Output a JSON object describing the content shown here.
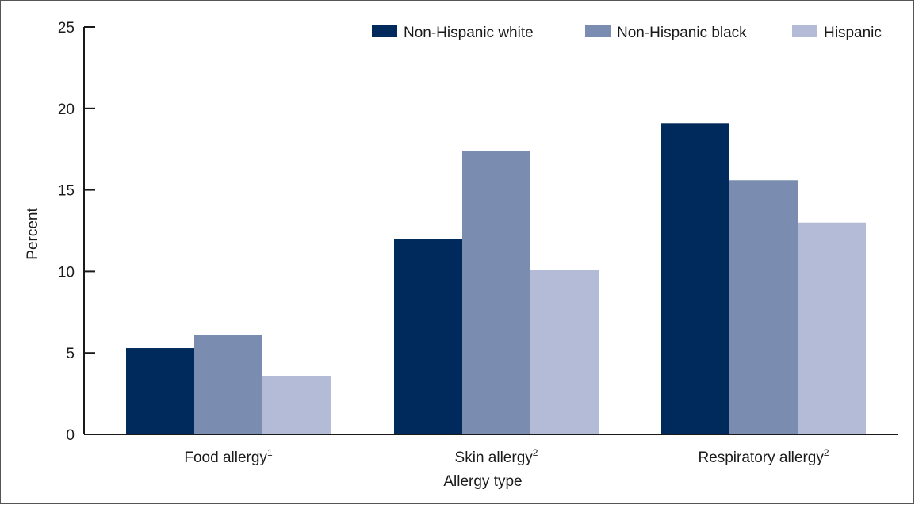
{
  "chart_data": {
    "type": "bar",
    "xlabel": "Allergy type",
    "ylabel": "Percent",
    "ylim": [
      0,
      25
    ],
    "yticks": [
      0,
      5,
      10,
      15,
      20,
      25
    ],
    "categories": [
      {
        "label": "Food allergy",
        "sup": "1"
      },
      {
        "label": "Skin allergy",
        "sup": "2"
      },
      {
        "label": "Respiratory allergy",
        "sup": "2"
      }
    ],
    "series": [
      {
        "name": "Non-Hispanic white",
        "color": "#002a5c",
        "values": [
          5.3,
          12.0,
          19.1
        ]
      },
      {
        "name": "Non-Hispanic black",
        "color": "#7a8cb0",
        "values": [
          6.1,
          17.4,
          15.6
        ]
      },
      {
        "name": "Hispanic",
        "color": "#b3bbd6",
        "values": [
          3.6,
          10.1,
          13.0
        ]
      }
    ],
    "legend_position": "top-right",
    "grid": false
  }
}
